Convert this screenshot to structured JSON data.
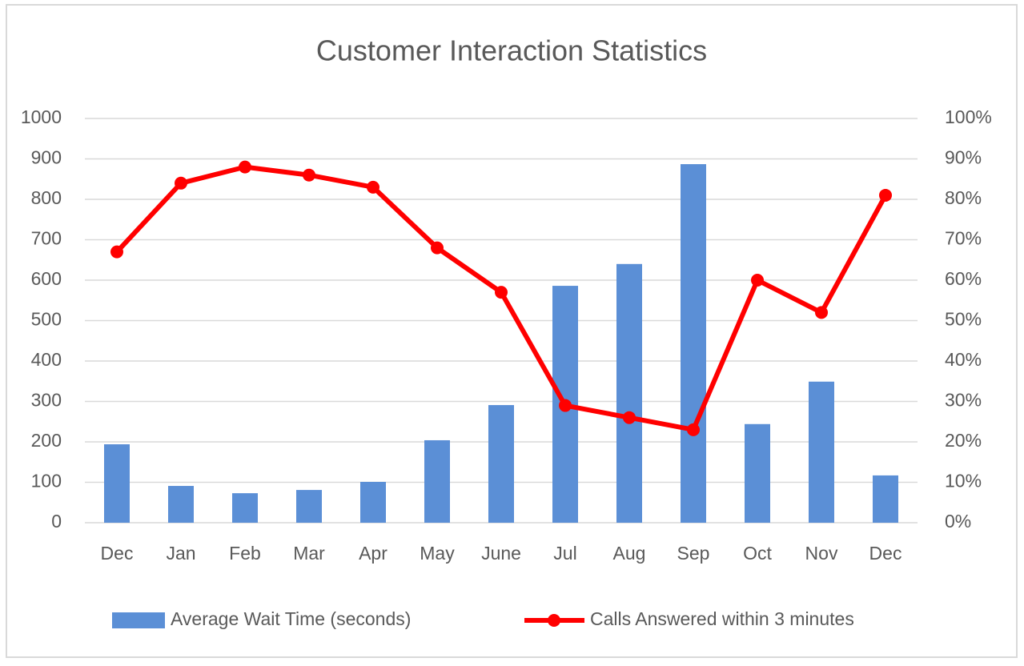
{
  "chart_data": {
    "type": "bar",
    "title": "Customer Interaction Statistics",
    "categories": [
      "Dec",
      "Jan",
      "Feb",
      "Mar",
      "Apr",
      "May",
      "June",
      "Jul",
      "Aug",
      "Sep",
      "Oct",
      "Nov",
      "Dec"
    ],
    "series": [
      {
        "name": "Average Wait Time (seconds)",
        "type": "bar",
        "color": "#5b8fd6",
        "axis": "y",
        "values": [
          194,
          91,
          73,
          81,
          101,
          204,
          291,
          586,
          640,
          887,
          244,
          349,
          117
        ]
      },
      {
        "name": "Calls Answered within 3 minutes",
        "type": "line",
        "color": "#ff0000",
        "axis": "y2",
        "values": [
          67,
          84,
          88,
          86,
          83,
          68,
          57,
          29,
          26,
          23,
          60,
          52,
          81
        ]
      }
    ],
    "ylim": [
      0,
      1000
    ],
    "yticks": [
      0,
      100,
      200,
      300,
      400,
      500,
      600,
      700,
      800,
      900,
      1000
    ],
    "y2lim": [
      0,
      100
    ],
    "y2ticks": [
      {
        "value": 0,
        "label": "0%"
      },
      {
        "value": 10,
        "label": "10%"
      },
      {
        "value": 20,
        "label": "20%"
      },
      {
        "value": 30,
        "label": "30%"
      },
      {
        "value": 40,
        "label": "40%"
      },
      {
        "value": 50,
        "label": "50%"
      },
      {
        "value": 60,
        "label": "60%"
      },
      {
        "value": 70,
        "label": "70%"
      },
      {
        "value": 80,
        "label": "80%"
      },
      {
        "value": 90,
        "label": "90%"
      },
      {
        "value": 100,
        "label": "100%"
      }
    ],
    "grid": true,
    "legend": "bottom"
  }
}
